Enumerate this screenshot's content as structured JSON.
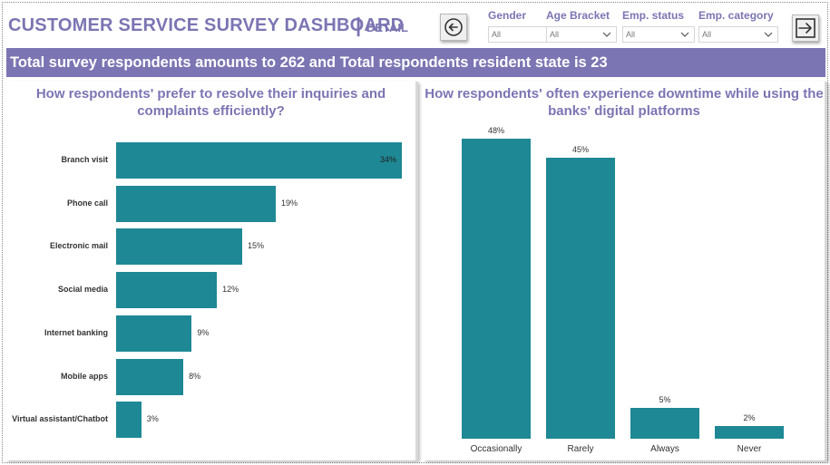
{
  "header": {
    "title": "CUSTOMER SERVICE SURVEY DASHBOARD",
    "separator": "|",
    "subtitle": "DETAIL"
  },
  "nav": {
    "back_icon": "arrow-left-circle-icon",
    "next_icon": "arrow-right-box-icon"
  },
  "filters": [
    {
      "label": "Gender",
      "value": "All"
    },
    {
      "label": "Age Bracket",
      "value": "All"
    },
    {
      "label": "Emp. status",
      "value": "All"
    },
    {
      "label": "Emp. category",
      "value": "All"
    }
  ],
  "banner": {
    "text": "Total survey respondents amounts to 262 and Total respondents resident state is 23"
  },
  "colors": {
    "accent": "#7b75b3",
    "bar": "#1e8895"
  },
  "chart_data": [
    {
      "type": "bar",
      "orientation": "horizontal",
      "title": "How respondents' prefer to resolve their inquiries and complaints efficiently?",
      "categories": [
        "Branch visit",
        "Phone call",
        "Electronic mail",
        "Social media",
        "Internet banking",
        "Mobile apps",
        "Virtual assistant/Chatbot"
      ],
      "values": [
        34,
        19,
        15,
        12,
        9,
        8,
        3
      ],
      "value_labels": [
        "34%",
        "19%",
        "15%",
        "12%",
        "9%",
        "8%",
        "3%"
      ],
      "unit": "%"
    },
    {
      "type": "bar",
      "orientation": "vertical",
      "title": "How respondents' often experience downtime while using the banks' digital platforms",
      "categories": [
        "Occasionally",
        "Rarely",
        "Always",
        "Never"
      ],
      "values": [
        48,
        45,
        5,
        2
      ],
      "value_labels": [
        "48%",
        "45%",
        "5%",
        "2%"
      ],
      "unit": "%"
    }
  ]
}
